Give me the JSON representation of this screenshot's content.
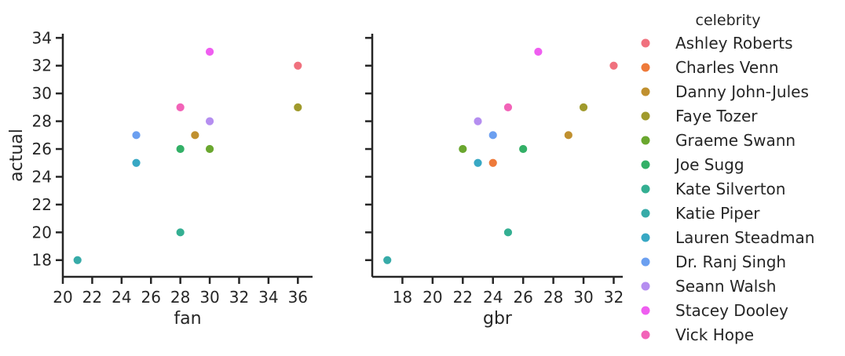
{
  "chart_data": {
    "type": "scatter",
    "legend": {
      "title": "celebrity",
      "placement": "right",
      "entries": [
        {
          "name": "Ashley Roberts",
          "color": "#f0717e"
        },
        {
          "name": "Charles Venn",
          "color": "#ee7a3a"
        },
        {
          "name": "Danny John-Jules",
          "color": "#c0902f"
        },
        {
          "name": "Faye Tozer",
          "color": "#a09a2c"
        },
        {
          "name": "Graeme Swann",
          "color": "#6aa72f"
        },
        {
          "name": "Joe Sugg",
          "color": "#33b067"
        },
        {
          "name": "Kate Silverton",
          "color": "#34af92"
        },
        {
          "name": "Katie Piper",
          "color": "#37aba8"
        },
        {
          "name": "Lauren Steadman",
          "color": "#38a8c4"
        },
        {
          "name": "Dr. Ranj Singh",
          "color": "#6b9ff0"
        },
        {
          "name": "Seann Walsh",
          "color": "#b58ef0"
        },
        {
          "name": "Stacey Dooley",
          "color": "#ef5ef0"
        },
        {
          "name": "Vick Hope",
          "color": "#f263b8"
        }
      ]
    },
    "panels": [
      {
        "xlabel": "fan",
        "ylabel": "actual",
        "xlim": [
          20,
          37
        ],
        "ylim": [
          16.8,
          34.3
        ],
        "xticks": [
          20,
          22,
          24,
          26,
          28,
          30,
          32,
          34,
          36
        ],
        "yticks": [
          18,
          20,
          22,
          24,
          26,
          28,
          30,
          32,
          34
        ],
        "points": [
          {
            "celebrity": "Ashley Roberts",
            "x": 36,
            "y": 32
          },
          {
            "celebrity": "Danny John-Jules",
            "x": 29,
            "y": 27
          },
          {
            "celebrity": "Faye Tozer",
            "x": 36,
            "y": 29
          },
          {
            "celebrity": "Graeme Swann",
            "x": 30,
            "y": 26
          },
          {
            "celebrity": "Joe Sugg",
            "x": 28,
            "y": 26
          },
          {
            "celebrity": "Kate Silverton",
            "x": 28,
            "y": 20
          },
          {
            "celebrity": "Katie Piper",
            "x": 21,
            "y": 18
          },
          {
            "celebrity": "Lauren Steadman",
            "x": 25,
            "y": 25
          },
          {
            "celebrity": "Dr. Ranj Singh",
            "x": 25,
            "y": 27
          },
          {
            "celebrity": "Seann Walsh",
            "x": 30,
            "y": 28
          },
          {
            "celebrity": "Stacey Dooley",
            "x": 30,
            "y": 33
          },
          {
            "celebrity": "Vick Hope",
            "x": 28,
            "y": 29
          }
        ]
      },
      {
        "xlabel": "gbr",
        "ylabel": "",
        "xlim": [
          16,
          32.6
        ],
        "ylim": [
          16.8,
          34.3
        ],
        "xticks": [
          18,
          20,
          22,
          24,
          26,
          28,
          30,
          32
        ],
        "yticks": [
          18,
          20,
          22,
          24,
          26,
          28,
          30,
          32,
          34
        ],
        "points": [
          {
            "celebrity": "Ashley Roberts",
            "x": 32,
            "y": 32
          },
          {
            "celebrity": "Charles Venn",
            "x": 24,
            "y": 25
          },
          {
            "celebrity": "Danny John-Jules",
            "x": 29,
            "y": 27
          },
          {
            "celebrity": "Faye Tozer",
            "x": 30,
            "y": 29
          },
          {
            "celebrity": "Graeme Swann",
            "x": 22,
            "y": 26
          },
          {
            "celebrity": "Joe Sugg",
            "x": 26,
            "y": 26
          },
          {
            "celebrity": "Kate Silverton",
            "x": 25,
            "y": 20
          },
          {
            "celebrity": "Katie Piper",
            "x": 17,
            "y": 18
          },
          {
            "celebrity": "Lauren Steadman",
            "x": 23,
            "y": 25
          },
          {
            "celebrity": "Dr. Ranj Singh",
            "x": 24,
            "y": 27
          },
          {
            "celebrity": "Seann Walsh",
            "x": 23,
            "y": 28
          },
          {
            "celebrity": "Stacey Dooley",
            "x": 27,
            "y": 33
          },
          {
            "celebrity": "Vick Hope",
            "x": 25,
            "y": 29
          }
        ]
      }
    ]
  }
}
